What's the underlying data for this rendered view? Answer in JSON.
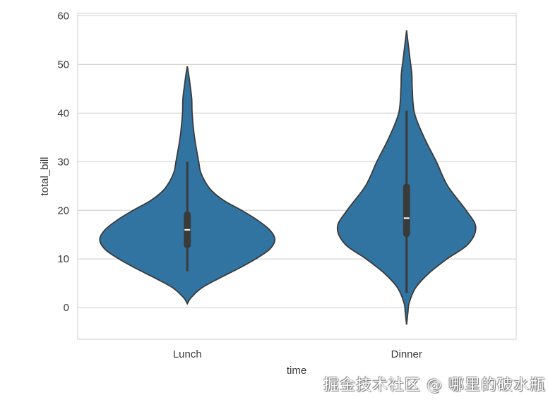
{
  "chart_data": {
    "type": "violin",
    "xlabel": "time",
    "ylabel": "total_bill",
    "categories": [
      "Lunch",
      "Dinner"
    ],
    "ylim": [
      -6.5,
      60.5
    ],
    "yticks": [
      0,
      10,
      20,
      30,
      40,
      50,
      60
    ],
    "grid": "horizontal",
    "fill_color": "#3274a1",
    "box_color": "#3a3a3a",
    "violins": [
      {
        "category": "Lunch",
        "density_profile": [
          [
            0.8,
            0
          ],
          [
            2,
            0.04
          ],
          [
            4,
            0.16
          ],
          [
            6,
            0.36
          ],
          [
            8,
            0.58
          ],
          [
            10,
            0.78
          ],
          [
            12,
            0.94
          ],
          [
            14,
            1.0
          ],
          [
            16,
            0.94
          ],
          [
            18,
            0.8
          ],
          [
            20,
            0.62
          ],
          [
            22,
            0.42
          ],
          [
            24,
            0.28
          ],
          [
            26,
            0.2
          ],
          [
            28,
            0.15
          ],
          [
            30,
            0.13
          ],
          [
            33,
            0.1
          ],
          [
            36,
            0.075
          ],
          [
            40,
            0.055
          ],
          [
            43,
            0.05
          ],
          [
            46,
            0.03
          ],
          [
            48,
            0.015
          ],
          [
            49.6,
            0
          ]
        ],
        "whisker_low": 7.5,
        "q1": 12.2,
        "median": 16.0,
        "q3": 19.8,
        "whisker_high": 30.0
      },
      {
        "category": "Dinner",
        "density_profile": [
          [
            -3.5,
            0
          ],
          [
            -1,
            0.015
          ],
          [
            1,
            0.03
          ],
          [
            4,
            0.1
          ],
          [
            7,
            0.25
          ],
          [
            10,
            0.46
          ],
          [
            13,
            0.7
          ],
          [
            16.5,
            0.79
          ],
          [
            20,
            0.68
          ],
          [
            25,
            0.47
          ],
          [
            30,
            0.34
          ],
          [
            35,
            0.2
          ],
          [
            40,
            0.09
          ],
          [
            45,
            0.065
          ],
          [
            48,
            0.06
          ],
          [
            51,
            0.04
          ],
          [
            54,
            0.02
          ],
          [
            57,
            0
          ]
        ],
        "whisker_low": 3.0,
        "q1": 14.5,
        "median": 18.4,
        "q3": 25.5,
        "whisker_high": 40.5
      }
    ]
  },
  "watermark": "掘金技术社区 @ 哪里的破水瓶"
}
